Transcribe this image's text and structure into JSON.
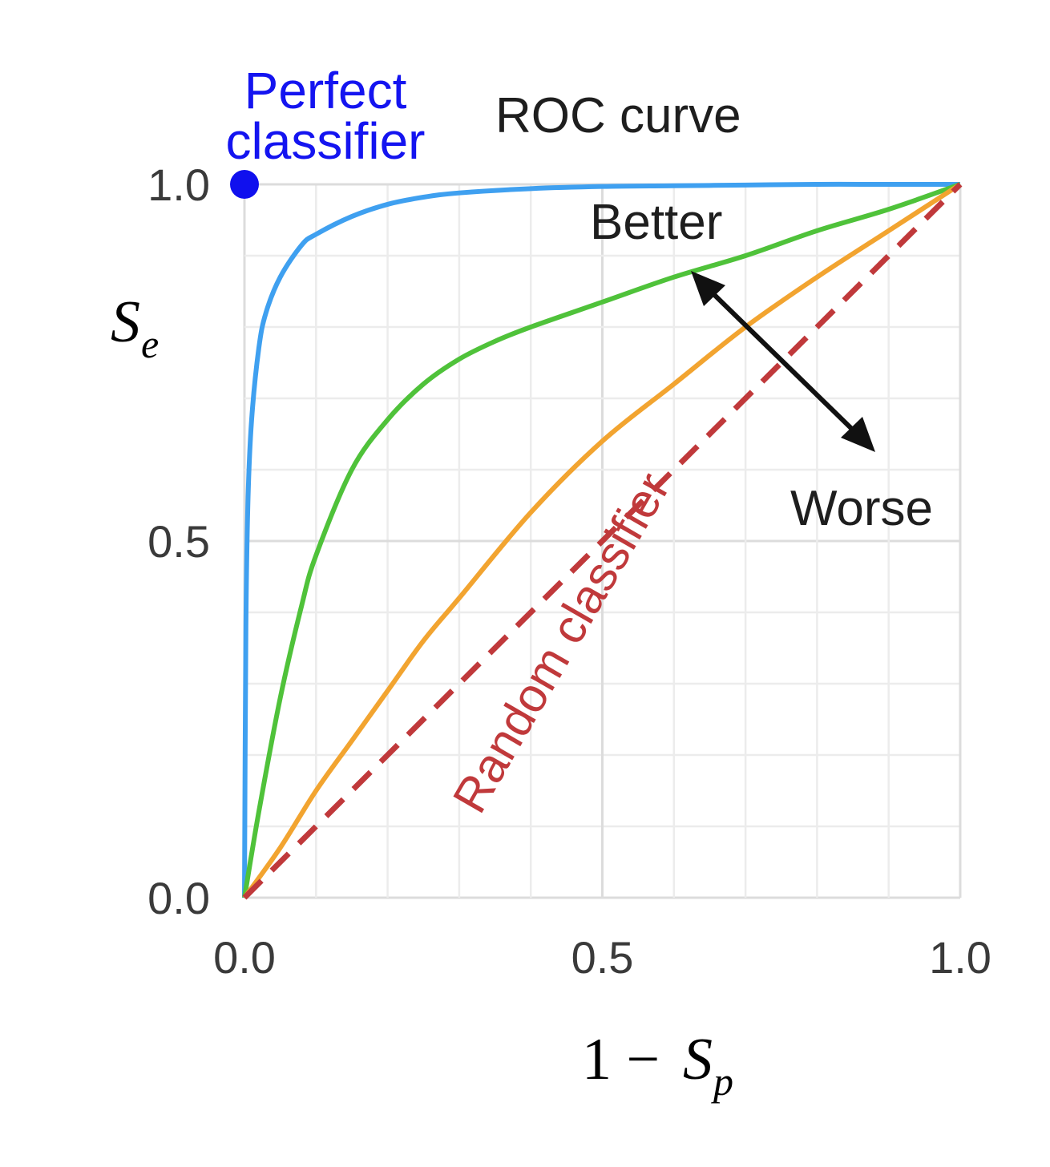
{
  "chart_data": {
    "type": "line",
    "title": "ROC curve",
    "xlabel": {
      "prefix": "1 − ",
      "symbol": "S",
      "subscript": "p"
    },
    "ylabel": {
      "symbol": "S",
      "subscript": "e"
    },
    "xlim": [
      0,
      1
    ],
    "ylim": [
      0,
      1
    ],
    "xticks": [
      "0.0",
      "0.5",
      "1.0"
    ],
    "yticks": [
      "0.0",
      "0.5",
      "1.0"
    ],
    "grid": true,
    "series": [
      {
        "color": "#3fa0f0",
        "x": [
          0,
          0.002,
          0.005,
          0.01,
          0.02,
          0.03,
          0.05,
          0.08,
          0.1,
          0.15,
          0.2,
          0.25,
          0.3,
          0.4,
          0.5,
          0.6,
          0.7,
          0.8,
          0.9,
          1.0
        ],
        "y": [
          0,
          0.38,
          0.56,
          0.67,
          0.77,
          0.82,
          0.87,
          0.915,
          0.93,
          0.955,
          0.972,
          0.982,
          0.988,
          0.994,
          0.997,
          0.998,
          0.999,
          1.0,
          1.0,
          1.0
        ]
      },
      {
        "color": "#4fc23a",
        "x": [
          0,
          0.02,
          0.05,
          0.08,
          0.1,
          0.15,
          0.2,
          0.25,
          0.3,
          0.35,
          0.4,
          0.5,
          0.6,
          0.7,
          0.8,
          0.9,
          1.0
        ],
        "y": [
          0,
          0.12,
          0.28,
          0.41,
          0.48,
          0.6,
          0.67,
          0.72,
          0.755,
          0.78,
          0.8,
          0.835,
          0.87,
          0.9,
          0.935,
          0.965,
          1.0
        ]
      },
      {
        "color": "#f2a430",
        "x": [
          0,
          0.05,
          0.1,
          0.15,
          0.2,
          0.25,
          0.3,
          0.4,
          0.5,
          0.6,
          0.7,
          0.8,
          0.9,
          1.0
        ],
        "y": [
          0,
          0.07,
          0.15,
          0.22,
          0.29,
          0.36,
          0.42,
          0.54,
          0.64,
          0.72,
          0.8,
          0.87,
          0.935,
          1.0
        ]
      },
      {
        "color": "#c0393b",
        "dashed": true,
        "x": [
          0,
          1
        ],
        "y": [
          0,
          1
        ]
      }
    ],
    "perfect_point": {
      "x": 0,
      "y": 1,
      "color": "#1010ee"
    },
    "annotations": {
      "perfect": [
        "Perfect",
        "classifier"
      ],
      "random": "Random classifier",
      "better": "Better",
      "worse": "Worse"
    }
  }
}
